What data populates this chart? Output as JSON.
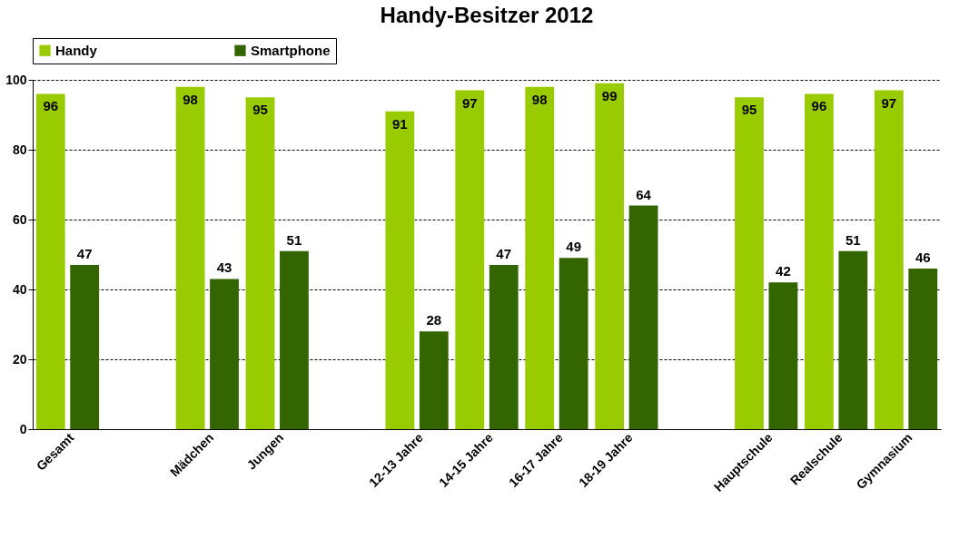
{
  "chart_data": {
    "type": "bar",
    "title": "Handy-Besitzer 2012",
    "categories": [
      "Gesamt",
      null,
      "Mädchen",
      "Jungen",
      null,
      "12-13 Jahre",
      "14-15 Jahre",
      "16-17 Jahre",
      "18-19 Jahre",
      null,
      "Hauptschule",
      "Realschule",
      "Gymnasium"
    ],
    "series": [
      {
        "name": "Handy",
        "color": "#99cc00",
        "values": [
          96,
          null,
          98,
          95,
          null,
          91,
          97,
          98,
          99,
          null,
          95,
          96,
          97
        ]
      },
      {
        "name": "Smartphone",
        "color": "#336600",
        "values": [
          47,
          null,
          43,
          51,
          null,
          28,
          47,
          49,
          64,
          null,
          42,
          51,
          46
        ]
      }
    ],
    "ylim": [
      0,
      100
    ],
    "yticks": [
      0,
      20,
      40,
      60,
      80,
      100
    ],
    "grid": "y",
    "legend": "top",
    "data_labels": true
  }
}
